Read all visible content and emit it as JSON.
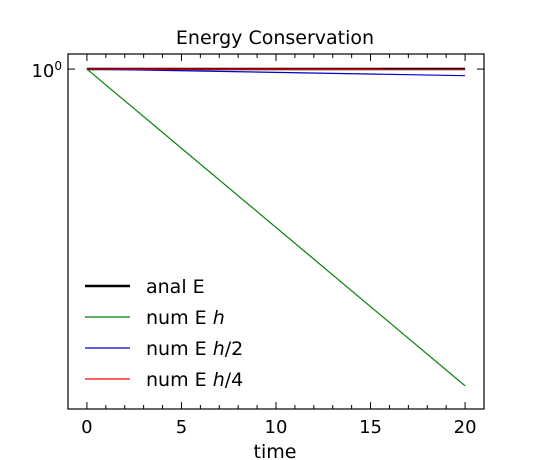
{
  "chart_data": {
    "type": "line",
    "title": "Energy Conservation",
    "xlabel": "time",
    "ylabel": "",
    "xlim": [
      -1,
      21
    ],
    "ylim": [
      0.46,
      1.035
    ],
    "y_scale": "log",
    "x_ticks": [
      0,
      5,
      10,
      15,
      20
    ],
    "x_tick_labels": [
      "0",
      "5",
      "10",
      "15",
      "20"
    ],
    "y_ticks": [
      1.0
    ],
    "y_tick_labels": [
      "10^0"
    ],
    "grid": false,
    "legend_placement": "bottom-left",
    "series": [
      {
        "name": "anal E",
        "color": "#000000",
        "line_width": "thick",
        "x": [
          0,
          20
        ],
        "y": [
          1.0,
          1.0
        ]
      },
      {
        "name": "num E h",
        "color": "#008000",
        "line_width": "thin",
        "x": [
          0,
          20
        ],
        "y": [
          1.0,
          0.485
        ]
      },
      {
        "name": "num E h/2",
        "color": "#0000cc",
        "line_width": "thin",
        "x": [
          0,
          20
        ],
        "y": [
          1.0,
          0.985
        ]
      },
      {
        "name": "num E h/4",
        "color": "#ff0000",
        "line_width": "thin",
        "x": [
          0,
          20
        ],
        "y": [
          1.0,
          0.9995
        ]
      }
    ],
    "legend_entries": [
      {
        "prefix": "anal E",
        "italic": "",
        "suffix": ""
      },
      {
        "prefix": "num E ",
        "italic": "h",
        "suffix": ""
      },
      {
        "prefix": "num E ",
        "italic": "h",
        "suffix": "/2"
      },
      {
        "prefix": "num E ",
        "italic": "h",
        "suffix": "/4"
      }
    ]
  }
}
